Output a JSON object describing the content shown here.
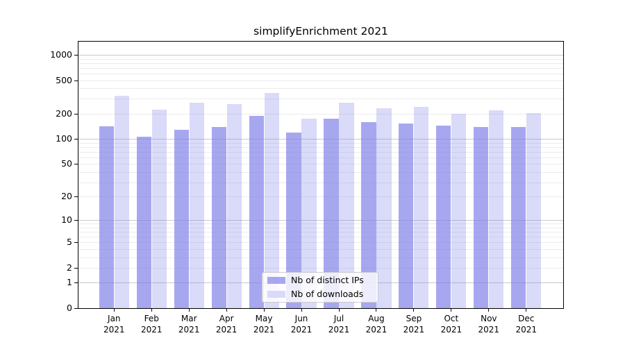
{
  "title": "simplifyEnrichment 2021",
  "legend": {
    "items": [
      {
        "label": "Nb of distinct IPs",
        "swatch": "#a7a7f0"
      },
      {
        "label": "Nb of downloads",
        "swatch": "#d9d9f9"
      }
    ]
  },
  "chart_data": {
    "type": "bar",
    "title": "simplifyEnrichment 2021",
    "categories": [
      "Jan 2021",
      "Feb 2021",
      "Mar 2021",
      "Apr 2021",
      "May 2021",
      "Jun 2021",
      "Jul 2021",
      "Aug 2021",
      "Sep 2021",
      "Oct 2021",
      "Nov 2021",
      "Dec 2021"
    ],
    "x_months": [
      "Jan",
      "Feb",
      "Mar",
      "Apr",
      "May",
      "Jun",
      "Jul",
      "Aug",
      "Sep",
      "Oct",
      "Nov",
      "Dec"
    ],
    "x_year": "2021",
    "series": [
      {
        "name": "Nb of distinct IPs",
        "color_rgb": "121,121,232",
        "alpha": 0.66,
        "values": [
          141,
          107,
          128,
          138,
          188,
          119,
          175,
          159,
          152,
          143,
          140,
          140
        ]
      },
      {
        "name": "Nb of downloads",
        "color_rgb": "121,121,232",
        "alpha": 0.28,
        "values": [
          325,
          222,
          268,
          260,
          355,
          175,
          268,
          232,
          240,
          198,
          219,
          202
        ]
      }
    ],
    "yscale": "log1p",
    "yticks_labeled": [
      0,
      1,
      2,
      5,
      10,
      20,
      50,
      100,
      200,
      500,
      1000
    ],
    "ylim": [
      0,
      1430
    ],
    "grid": {
      "major_values": [
        1,
        10,
        100,
        1000
      ],
      "minor_values": [
        2,
        3,
        4,
        5,
        6,
        7,
        8,
        9,
        20,
        30,
        40,
        50,
        60,
        70,
        80,
        90,
        200,
        300,
        400,
        500,
        600,
        700,
        800,
        900
      ],
      "major_color": "#c9c9c9",
      "minor_color": "#ececec"
    },
    "legend_position": "lower center",
    "axis_color": "#000000",
    "background_color": "#ffffff"
  }
}
